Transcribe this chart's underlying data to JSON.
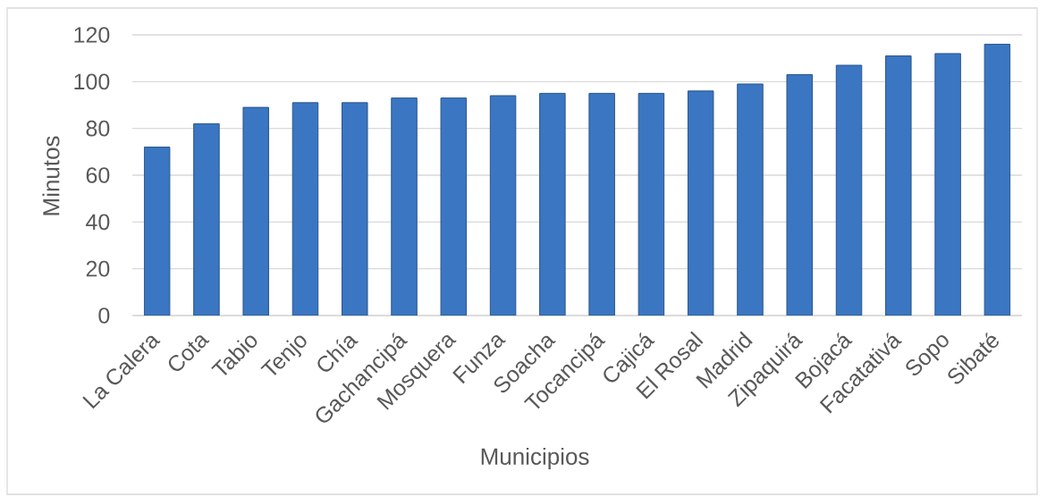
{
  "chart_data": {
    "type": "bar",
    "xlabel": "Municipios",
    "ylabel": "Minutos",
    "categories": [
      "La Calera",
      "Cota",
      "Tabio",
      "Tenjo",
      "Chía",
      "Gachancipá",
      "Mosquera",
      "Funza",
      "Soacha",
      "Tocancipá",
      "Cajicá",
      "El Rosal",
      "Madrid",
      "Zipaquirá",
      "Bojacá",
      "Facatativá",
      "Sopo",
      "Sibaté"
    ],
    "values": [
      72,
      82,
      89,
      91,
      91,
      93,
      93,
      94,
      95,
      95,
      95,
      96,
      99,
      103,
      107,
      111,
      112,
      116
    ],
    "color": "#3a76c2",
    "ylim": [
      0,
      120
    ],
    "yticks": [
      0,
      20,
      40,
      60,
      80,
      100,
      120
    ],
    "grid": "y"
  }
}
